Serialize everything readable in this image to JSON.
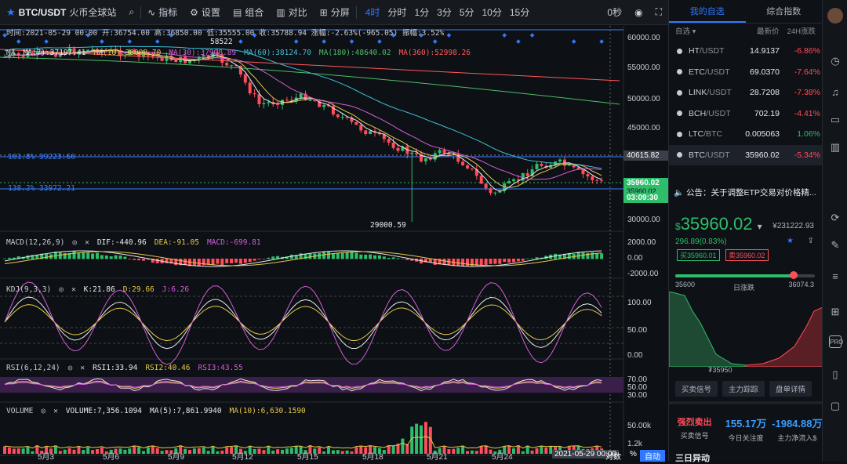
{
  "toolbar": {
    "symbol": "BTC/USDT",
    "exchange": "火币全球站",
    "indicators": "指标",
    "settings": "设置",
    "combo": "组合",
    "compare": "对比",
    "split": "分屏",
    "timeframes": [
      "4时",
      "分时",
      "1分",
      "3分",
      "5分",
      "10分",
      "15分"
    ],
    "countdown": "0秒"
  },
  "ohlc_line": "时间:2021-05-29 00:00  开:36754.00  高:36850.00  低:35555.00  收:35788.94  涨幅:-2.63%(-965.05)  振幅:3.52%",
  "ma_line": {
    "label": "MA",
    "ma7": "MA(7):37197.41",
    "ma10": "MA(10):38008.70",
    "ma30": "MA(30):37908.89",
    "ma60": "MA(60):38124.70",
    "ma180": "MA(180):48640.02",
    "ma360": "MA(360):52998.26"
  },
  "annotations": {
    "high_mark": "58522",
    "low_mark": "29000.59",
    "fib_1618": "161.8% 39223.66",
    "fib_1382": "138.2% 33972.21"
  },
  "price_axis": [
    "60000.00",
    "55000.00",
    "50000.00",
    "45000.00",
    "40000.00",
    "35000.00",
    "30000.00"
  ],
  "price_tags": {
    "hline": "40615.82",
    "current": "35960.02",
    "current_sub": "35960.02",
    "timer": "03:09:30"
  },
  "macd": {
    "title": "MACD(12,26,9)",
    "dif": "DIF:-440.96",
    "dea": "DEA:-91.05",
    "macd": "MACD:-699.81",
    "axis": [
      "2000.00",
      "0.00",
      "-2000.00"
    ]
  },
  "kdj": {
    "title": "KDJ(9,3,3)",
    "k": "K:21.86",
    "d": "D:29.66",
    "j": "J:6.26",
    "axis": [
      "100.00",
      "50.00",
      "0.00"
    ]
  },
  "rsi": {
    "title": "RSI(6,12,24)",
    "r1": "RSI1:33.94",
    "r2": "RSI2:40.46",
    "r3": "RSI3:43.55",
    "axis": [
      "70.00",
      "50.00",
      "30.00"
    ]
  },
  "volume": {
    "title": "VOLUME",
    "v": "VOLUME:7,356.1094",
    "ma5": "MA(5):7,861.9940",
    "ma10": "MA(10):6,630.1590",
    "axis": [
      "50.00k",
      "1.2k"
    ]
  },
  "dates": [
    "5月3",
    "5月6",
    "5月9",
    "5月12",
    "5月15",
    "5月18",
    "5月21",
    "5月24"
  ],
  "footer": {
    "cursor_date": "2021-05-29 00:00",
    "scale_mode": "对数",
    "percent": "%",
    "auto": "自动"
  },
  "watchlist": {
    "tab_mine": "我的自选",
    "tab_index": "综合指数",
    "col_filter": "自选",
    "col_price": "最新价",
    "col_change": "24H涨跌",
    "rows": [
      {
        "base": "HT",
        "quote": "/USDT",
        "price": "14.9137",
        "change": "-6.86%",
        "up": false
      },
      {
        "base": "ETC",
        "quote": "/USDT",
        "price": "69.0370",
        "change": "-7.64%",
        "up": false
      },
      {
        "base": "LINK",
        "quote": "/USDT",
        "price": "28.7208",
        "change": "-7.38%",
        "up": false
      },
      {
        "base": "BCH",
        "quote": "/USDT",
        "price": "702.19",
        "change": "-4.41%",
        "up": false
      },
      {
        "base": "LTC",
        "quote": "/BTC",
        "price": "0.005063",
        "change": "1.06%",
        "up": true
      },
      {
        "base": "BTC",
        "quote": "/USDT",
        "price": "35960.02",
        "change": "-5.34%",
        "up": false
      }
    ]
  },
  "notice": "公告：关于调整ETP交易对价格精...",
  "ticker": {
    "price": "35960.02",
    "currency_prefix": "$",
    "cny": "¥231222.93",
    "change": "296.89(0.83%)",
    "bid": "35960.01",
    "ask": "35960.02",
    "low": "35600",
    "high": "36074.3",
    "range_label": "日涨跌",
    "range_fraction": 0.85,
    "depth_mid": "35950"
  },
  "buttons": [
    "买卖信号",
    "主力踪踪",
    "盘单详情"
  ],
  "flow": {
    "tag": "强烈卖出",
    "tag_caption": "买卖信号",
    "attention": "155.17万",
    "attention_caption": "今日关注度",
    "net": "-1984.88万",
    "net_caption": "主力净流入$"
  },
  "bottom_caption": "三日异动",
  "colors": {
    "up": "#2ebd6b",
    "down": "#ff4d5a",
    "accent": "#2f78ff"
  }
}
